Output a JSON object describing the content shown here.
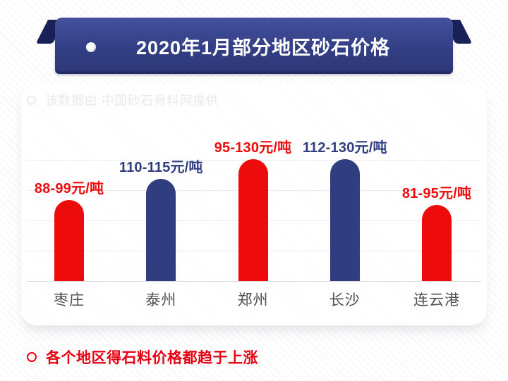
{
  "banner": {
    "title": "2020年1月部分地区砂石价格",
    "dot_icon": "sphere-bullet"
  },
  "source_note": {
    "bullet_icon": "circle-outline",
    "text": "该数据由:中国砂石骨料网提供"
  },
  "footer_note": {
    "bullet_icon": "circle-outline",
    "text": "各个地区得石料价格都趋于上涨"
  },
  "colors": {
    "red": "#ee0b0c",
    "navy": "#303e80",
    "banner_navy_top": "#44519c",
    "banner_navy_bottom": "#2c3876",
    "footer_red": "#e60012",
    "source_gray": "#9c9c9c",
    "category_gray": "#505054",
    "gridline": "#ececf0"
  },
  "chart_data": {
    "type": "bar",
    "title": "2020年1月部分地区砂石价格",
    "source": "中国砂石骨料网",
    "categories": [
      "枣庄",
      "泰州",
      "郑州",
      "长沙",
      "连云港"
    ],
    "values_range": [
      [
        88,
        99
      ],
      [
        110,
        115
      ],
      [
        95,
        130
      ],
      [
        112,
        130
      ],
      [
        81,
        95
      ]
    ],
    "bar_labels": [
      "88-99元/吨",
      "110-115元/吨",
      "95-130元/吨",
      "112-130元/吨",
      "81-95元/吨"
    ],
    "bar_colors": [
      "red",
      "navy",
      "red",
      "navy",
      "red"
    ],
    "unit": "元/吨",
    "xlabel": "",
    "ylabel": "",
    "grid": true,
    "legend": false
  }
}
